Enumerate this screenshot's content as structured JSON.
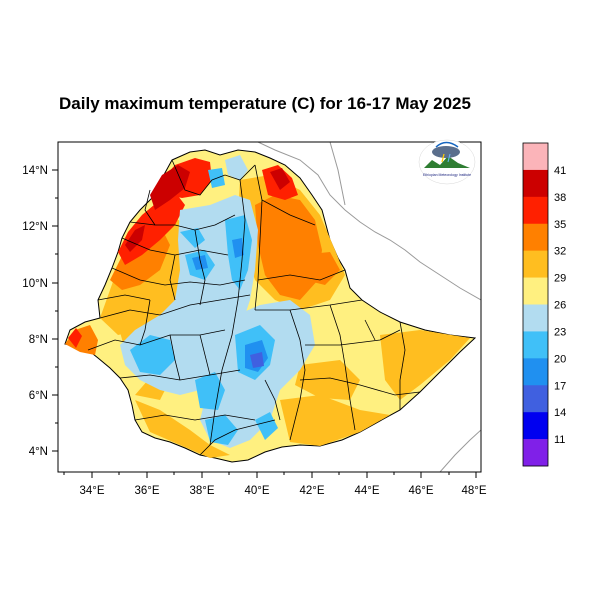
{
  "title": "Daily maximum temperature (C) for 16-17 May 2025",
  "x_ticks": [
    "34°E",
    "36°E",
    "38°E",
    "40°E",
    "42°E",
    "44°E",
    "46°E",
    "48°E"
  ],
  "y_ticks": [
    "14°N",
    "12°N",
    "10°N",
    "8°N",
    "6°N",
    "4°N"
  ],
  "colorbar": {
    "levels": [
      "41",
      "38",
      "35",
      "32",
      "29",
      "26",
      "23",
      "20",
      "17",
      "14",
      "11"
    ],
    "colors": [
      "#fbb4b9",
      "#cc0000",
      "#ff2000",
      "#ff8000",
      "#ffbe20",
      "#fff080",
      "#b2dcf0",
      "#40c0f8",
      "#2090f0",
      "#4060e0",
      "#0000f0",
      "#8020e8"
    ]
  },
  "logo": {
    "text": "Ethiopian Meteorology Institute",
    "icon": "weather-agency-logo"
  }
}
